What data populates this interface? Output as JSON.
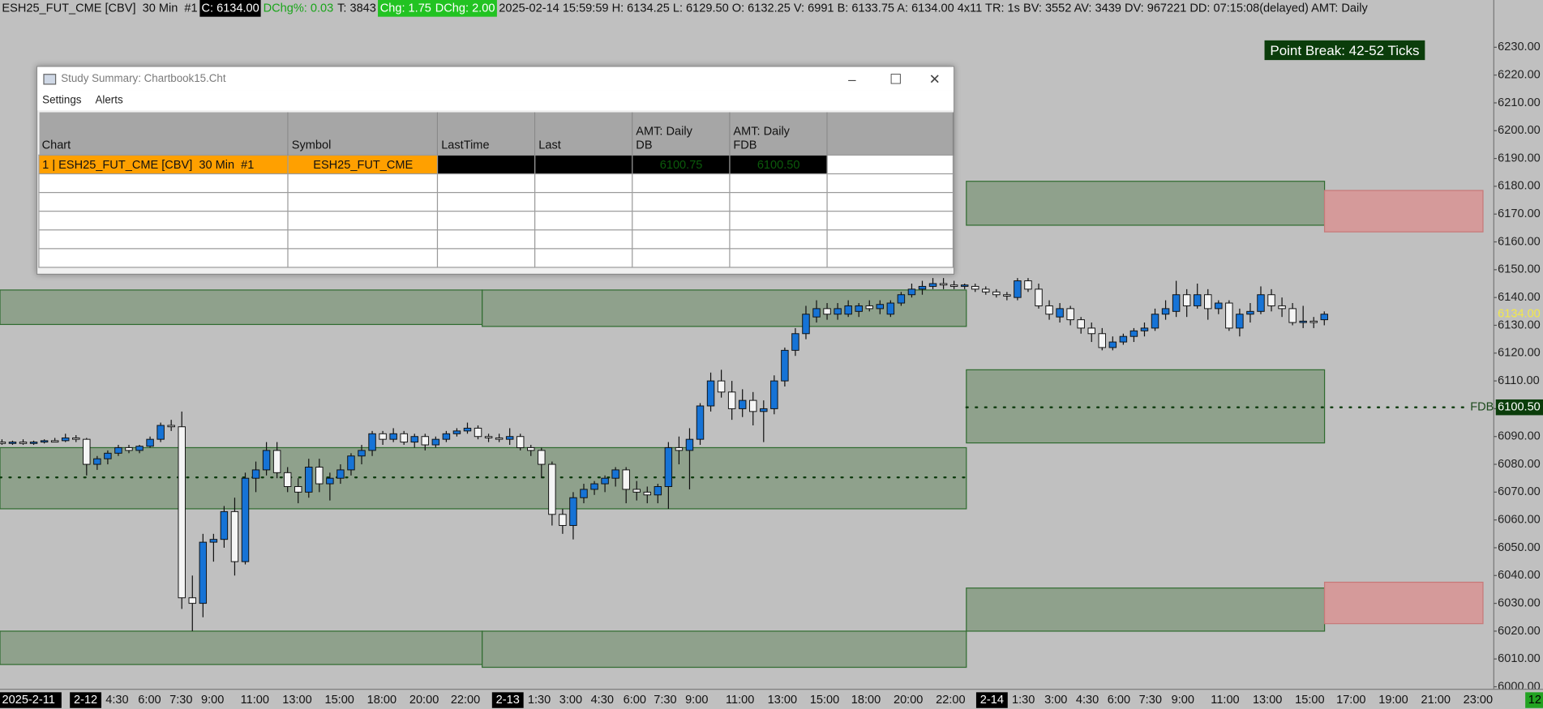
{
  "header": [
    "ESH25_FUT_CME [CBV]  30 Min  #1",
    "C: 6134.00",
    "DChg%: 0.03",
    "T: 3843",
    "Chg: 1.75",
    "DChg: 2.00",
    "2025-02-14 15:59:59 H: 6134.25 L: 6129.50 O: 6132.25 V: 6991 B: 6133.75 A: 6134.00 4x11 TR: 1s BV: 3552 AV: 3439 DV: 967221 DD: 07:15:08(delayed) AMT: Daily"
  ],
  "annotation": "Point Break: 42-52 Ticks",
  "price_axis": {
    "ylim": [
      5992,
      6247
    ],
    "yticks": [
      {
        "value": 6000,
        "label": "6000.00"
      },
      {
        "value": 6010,
        "label": "6010.00"
      },
      {
        "value": 6020,
        "label": "6020.00"
      },
      {
        "value": 6030,
        "label": "6030.00"
      },
      {
        "value": 6040,
        "label": "6040.00"
      },
      {
        "value": 6050,
        "label": "6050.00"
      },
      {
        "value": 6060,
        "label": "6060.00"
      },
      {
        "value": 6070,
        "label": "6070.00"
      },
      {
        "value": 6080,
        "label": "6080.00"
      },
      {
        "value": 6090,
        "label": "6090.00"
      },
      {
        "value": 6100,
        "label": "6100.00"
      },
      {
        "value": 6110,
        "label": "6110.00"
      },
      {
        "value": 6120,
        "label": "6120.00"
      },
      {
        "value": 6130,
        "label": "6130.00"
      },
      {
        "value": 6140,
        "label": "6140.00"
      },
      {
        "value": 6150,
        "label": "6150.00"
      },
      {
        "value": 6160,
        "label": "6160.00"
      },
      {
        "value": 6170,
        "label": "6170.00"
      },
      {
        "value": 6180,
        "label": "6180.00"
      },
      {
        "value": 6190,
        "label": "6190.00"
      },
      {
        "value": 6200,
        "label": "6200.00"
      },
      {
        "value": 6210,
        "label": "6210.00"
      },
      {
        "value": 6220,
        "label": "6220.00"
      },
      {
        "value": 6230,
        "label": "6230.00"
      }
    ],
    "last_price": {
      "value": 6134,
      "label": "6134.00"
    },
    "fdb_price": {
      "value": 6100.5,
      "label": "6100.50"
    },
    "corner": "12"
  },
  "time_axis": [
    "2025-2-11",
    "2-12",
    "4:30",
    "6:00",
    "7:30",
    "9:00",
    "11:00",
    "13:00",
    "15:00",
    "18:00",
    "20:00",
    "22:00",
    "2-13",
    "1:30",
    "3:00",
    "4:30",
    "6:00",
    "7:30",
    "9:00",
    "11:00",
    "13:00",
    "15:00",
    "18:00",
    "20:00",
    "22:00",
    "2-14",
    "1:30",
    "3:00",
    "4:30",
    "6:00",
    "7:30",
    "9:00",
    "11:00",
    "13:00",
    "15:00",
    "17:00",
    "19:00",
    "21:00",
    "23:00"
  ],
  "candles": [
    [
      6088,
      6089,
      6087,
      6087.5
    ],
    [
      6087.5,
      6088.5,
      6087,
      6088
    ],
    [
      6088,
      6089,
      6087,
      6087.5
    ],
    [
      6087.5,
      6088.5,
      6087,
      6088
    ],
    [
      6088,
      6089,
      6087.5,
      6088.5
    ],
    [
      6088.5,
      6089.5,
      6088,
      6088
    ],
    [
      6088.5,
      6091,
      6088,
      6089.5
    ],
    [
      6089.5,
      6090.5,
      6088,
      6089
    ],
    [
      6089,
      6089.5,
      6076,
      6080
    ],
    [
      6080,
      6083,
      6078,
      6082
    ],
    [
      6082,
      6085,
      6080,
      6084
    ],
    [
      6084,
      6087,
      6083,
      6086
    ],
    [
      6086,
      6087,
      6084,
      6085
    ],
    [
      6085,
      6087,
      6084,
      6086.5
    ],
    [
      6086.5,
      6090,
      6086,
      6089
    ],
    [
      6089,
      6095,
      6088,
      6094
    ],
    [
      6094,
      6096,
      6092,
      6093.5
    ],
    [
      6093.5,
      6099,
      6028,
      6032
    ],
    [
      6032,
      6040,
      6020,
      6030
    ],
    [
      6030,
      6055,
      6025,
      6052
    ],
    [
      6052,
      6055,
      6045,
      6053
    ],
    [
      6053,
      6065,
      6050,
      6063
    ],
    [
      6063,
      6068,
      6040,
      6045
    ],
    [
      6045,
      6077,
      6044,
      6075
    ],
    [
      6075,
      6081,
      6070,
      6078
    ],
    [
      6078,
      6088,
      6076,
      6085
    ],
    [
      6085,
      6088,
      6075,
      6077
    ],
    [
      6077,
      6079,
      6070,
      6072
    ],
    [
      6072,
      6075,
      6066,
      6070
    ],
    [
      6070,
      6082,
      6068,
      6079
    ],
    [
      6079,
      6082,
      6070,
      6073
    ],
    [
      6073,
      6077,
      6067,
      6075
    ],
    [
      6075,
      6080,
      6073,
      6078
    ],
    [
      6078,
      6084,
      6076,
      6083
    ],
    [
      6083,
      6087,
      6080,
      6085
    ],
    [
      6085,
      6092,
      6083,
      6091
    ],
    [
      6091,
      6092,
      6087,
      6089
    ],
    [
      6089,
      6093,
      6088,
      6091
    ],
    [
      6091,
      6092,
      6087,
      6088
    ],
    [
      6088,
      6091,
      6086,
      6090
    ],
    [
      6090,
      6091,
      6085,
      6087
    ],
    [
      6087,
      6090,
      6086,
      6089
    ],
    [
      6089,
      6092,
      6088,
      6091
    ],
    [
      6091,
      6093,
      6090,
      6092
    ],
    [
      6092,
      6095,
      6091,
      6093
    ],
    [
      6093,
      6094,
      6089,
      6090
    ],
    [
      6090,
      6091,
      6088,
      6089.5
    ],
    [
      6089.5,
      6091,
      6088,
      6089
    ],
    [
      6089,
      6093,
      6087,
      6090
    ],
    [
      6090,
      6091,
      6085,
      6086
    ],
    [
      6086,
      6087,
      6083,
      6085
    ],
    [
      6085,
      6086,
      6075,
      6080
    ],
    [
      6080,
      6081,
      6058,
      6062
    ],
    [
      6062,
      6064,
      6055,
      6058
    ],
    [
      6058,
      6070,
      6053,
      6068
    ],
    [
      6068,
      6073,
      6066,
      6071
    ],
    [
      6071,
      6074,
      6069,
      6073
    ],
    [
      6073,
      6076,
      6070,
      6075
    ],
    [
      6075,
      6079,
      6072,
      6078
    ],
    [
      6078,
      6079,
      6066,
      6071
    ],
    [
      6071,
      6074,
      6067,
      6070
    ],
    [
      6070,
      6072,
      6066,
      6069
    ],
    [
      6069,
      6073,
      6066,
      6072
    ],
    [
      6072,
      6088,
      6064,
      6086
    ],
    [
      6086,
      6090,
      6080,
      6085
    ],
    [
      6085,
      6093,
      6071,
      6089
    ],
    [
      6089,
      6102,
      6087,
      6101
    ],
    [
      6101,
      6113,
      6099,
      6110
    ],
    [
      6110,
      6114,
      6104,
      6106
    ],
    [
      6106,
      6110,
      6096,
      6100
    ],
    [
      6100,
      6107,
      6097,
      6103
    ],
    [
      6103,
      6106,
      6094,
      6099
    ],
    [
      6099,
      6103,
      6088,
      6100
    ],
    [
      6100,
      6112,
      6098,
      6110
    ],
    [
      6110,
      6122,
      6108,
      6121
    ],
    [
      6121,
      6129,
      6119,
      6127
    ],
    [
      6127,
      6137,
      6125,
      6134
    ],
    [
      6133,
      6139,
      6131,
      6136
    ],
    [
      6136,
      6138,
      6132,
      6134
    ],
    [
      6134,
      6138,
      6132,
      6136
    ],
    [
      6134,
      6139,
      6133,
      6137
    ],
    [
      6135,
      6138,
      6133,
      6137
    ],
    [
      6137,
      6139,
      6135,
      6136
    ],
    [
      6136,
      6139,
      6134,
      6137.5
    ],
    [
      6134,
      6139,
      6133,
      6138
    ],
    [
      6138,
      6142,
      6137,
      6141
    ],
    [
      6141,
      6145,
      6140,
      6143
    ],
    [
      6143,
      6146,
      6141,
      6144
    ],
    [
      6144,
      6147,
      6143,
      6145
    ],
    [
      6145,
      6147,
      6143,
      6144.5
    ],
    [
      6144.5,
      6146,
      6143,
      6144
    ],
    [
      6144,
      6145,
      6143,
      6144.5
    ],
    [
      6144,
      6145,
      6142,
      6143
    ],
    [
      6143,
      6144,
      6141,
      6142
    ],
    [
      6142,
      6143,
      6140,
      6141
    ],
    [
      6141,
      6142,
      6139,
      6140.5
    ],
    [
      6140,
      6147,
      6139,
      6146
    ],
    [
      6146,
      6147,
      6142,
      6143
    ],
    [
      6143,
      6145,
      6136,
      6137
    ],
    [
      6137,
      6139,
      6132,
      6134
    ],
    [
      6133,
      6138,
      6131,
      6136
    ],
    [
      6136,
      6137,
      6130,
      6132
    ],
    [
      6132,
      6133,
      6127,
      6129
    ],
    [
      6129,
      6131,
      6124,
      6127
    ],
    [
      6127,
      6129,
      6121,
      6122
    ],
    [
      6122,
      6126,
      6121,
      6124
    ],
    [
      6124,
      6127,
      6123,
      6126
    ],
    [
      6126,
      6129,
      6124,
      6128
    ],
    [
      6128,
      6131,
      6126,
      6129
    ],
    [
      6129,
      6136,
      6128,
      6134
    ],
    [
      6134,
      6139,
      6132,
      6136
    ],
    [
      6135,
      6146,
      6133,
      6141
    ],
    [
      6141,
      6143,
      6133,
      6137
    ],
    [
      6137,
      6145,
      6136,
      6141
    ],
    [
      6141,
      6143,
      6132,
      6136
    ],
    [
      6136,
      6139,
      6134,
      6138
    ],
    [
      6138,
      6139,
      6128,
      6129
    ],
    [
      6129,
      6136,
      6126,
      6134
    ],
    [
      6134,
      6138,
      6131,
      6135
    ],
    [
      6135,
      6144,
      6134,
      6141
    ],
    [
      6141,
      6143,
      6135,
      6137
    ],
    [
      6137,
      6140,
      6133,
      6136
    ],
    [
      6136,
      6138,
      6130,
      6131
    ],
    [
      6131,
      6137,
      6129,
      6131.5
    ],
    [
      6131.5,
      6133,
      6129,
      6131
    ],
    [
      6132,
      6135,
      6130,
      6134
    ]
  ],
  "zones": [
    {
      "top": 6142.7,
      "bottom": 6130.3
    },
    {
      "top": 6142.7,
      "bottom": 6129.6
    },
    {
      "top": 6086,
      "bottom": 6064
    },
    {
      "top": 6020,
      "bottom": 6008
    },
    {
      "top": 6020,
      "bottom": 6007
    },
    {
      "top": 6181.8,
      "bottom": 6166
    },
    {
      "top": 6114,
      "bottom": 6087.7
    },
    {
      "top": 6035.5,
      "bottom": 6020
    },
    {
      "top": 6178.5,
      "bottom": 6163.6
    },
    {
      "top": 6037.6,
      "bottom": 6022.7
    }
  ],
  "levels": [
    {
      "price": 6075.3
    },
    {
      "price": 6100.5,
      "label": "FDB"
    }
  ],
  "window": {
    "title": "Study Summary: Chartbook15.Cht",
    "menu": [
      "Settings",
      "Alerts"
    ],
    "columns": [
      "Chart",
      "Symbol",
      "LastTime",
      "Last",
      "AMT: Daily\nDB",
      "AMT: Daily\nFDB"
    ],
    "rows": [
      [
        "1 | ESH25_FUT_CME [CBV]  30 Min  #1",
        "ESH25_FUT_CME",
        null,
        null,
        "6100.75",
        "6100.50"
      ]
    ]
  }
}
